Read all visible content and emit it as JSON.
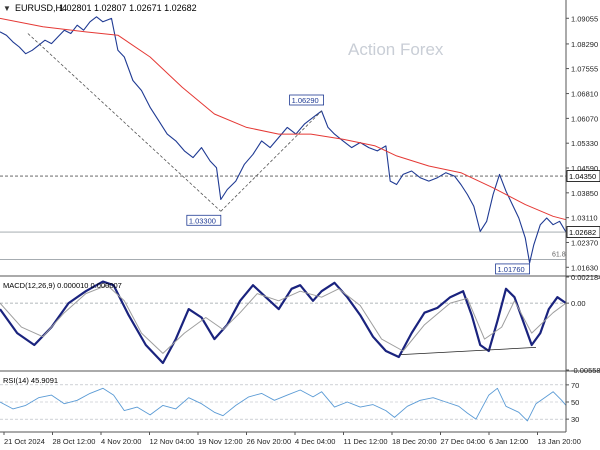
{
  "header": {
    "arrow": "▼",
    "symbol": "EURUSD,H4",
    "ohlc": "1.02801 1.02807 1.02671 1.02682"
  },
  "watermark": "Action Forex",
  "colors": {
    "price": "#1f3a93",
    "ma": "#e53935",
    "macd": "#1a237e",
    "signal": "#9e9e9e",
    "rsi": "#5b9bd5",
    "grid": "#cfd8e3",
    "axis": "#333333"
  },
  "chart_data": [
    {
      "type": "line",
      "panel": "price",
      "title": "EURUSD,H4",
      "y_ticks": [
        "1.09055",
        "1.08290",
        "1.07555",
        "1.06810",
        "1.06070",
        "1.05330",
        "1.04590",
        "1.03850",
        "1.03110",
        "1.02370",
        "1.01630"
      ],
      "ylim": [
        1.014,
        1.096
      ],
      "x_ticks": [
        "21 Oct 2024",
        "28 Oct 12:00",
        "4 Nov 20:00",
        "12 Nov 04:00",
        "19 Nov 12:00",
        "26 Nov 20:00",
        "4 Dec 04:00",
        "11 Dec 12:00",
        "18 Dec 20:00",
        "27 Dec 04:00",
        "6 Jan 12:00",
        "13 Jan 20:00"
      ],
      "series": [
        {
          "role": "price",
          "values": [
            [
              0,
              1.0865
            ],
            [
              3,
              1.0855
            ],
            [
              6,
              1.0835
            ],
            [
              9,
              1.082
            ],
            [
              12,
              1.08
            ],
            [
              15,
              1.081
            ],
            [
              18,
              1.0825
            ],
            [
              21,
              1.084
            ],
            [
              24,
              1.083
            ],
            [
              27,
              1.085
            ],
            [
              30,
              1.087
            ],
            [
              33,
              1.086
            ],
            [
              36,
              1.0885
            ],
            [
              39,
              1.087
            ],
            [
              42,
              1.0895
            ],
            [
              45,
              1.091
            ],
            [
              48,
              1.0895
            ],
            [
              52,
              1.0905
            ],
            [
              55,
              1.081
            ],
            [
              58,
              1.079
            ],
            [
              62,
              1.072
            ],
            [
              66,
              1.069
            ],
            [
              70,
              1.064
            ],
            [
              74,
              1.06
            ],
            [
              78,
              1.056
            ],
            [
              82,
              1.054
            ],
            [
              86,
              1.051
            ],
            [
              90,
              1.049
            ],
            [
              94,
              1.052
            ],
            [
              98,
              1.048
            ],
            [
              101,
              1.046
            ],
            [
              103,
              1.0365
            ],
            [
              106,
              1.0395
            ],
            [
              110,
              1.042
            ],
            [
              114,
              1.047
            ],
            [
              118,
              1.05
            ],
            [
              122,
              1.054
            ],
            [
              126,
              1.052
            ],
            [
              130,
              1.055
            ],
            [
              134,
              1.058
            ],
            [
              138,
              1.056
            ],
            [
              142,
              1.059
            ],
            [
              146,
              1.061
            ],
            [
              150,
              1.0629
            ],
            [
              153,
              1.058
            ],
            [
              156,
              1.056
            ],
            [
              160,
              1.054
            ],
            [
              164,
              1.052
            ],
            [
              168,
              1.0535
            ],
            [
              172,
              1.052
            ],
            [
              176,
              1.051
            ],
            [
              180,
              1.0525
            ],
            [
              182,
              1.042
            ],
            [
              185,
              1.041
            ],
            [
              188,
              1.044
            ],
            [
              192,
              1.045
            ],
            [
              196,
              1.043
            ],
            [
              200,
              1.042
            ],
            [
              204,
              1.043
            ],
            [
              208,
              1.0445
            ],
            [
              212,
              1.0435
            ],
            [
              215,
              1.041
            ],
            [
              218,
              1.038
            ],
            [
              221,
              1.0345
            ],
            [
              224,
              1.027
            ],
            [
              227,
              1.03
            ],
            [
              230,
              1.038
            ],
            [
              233,
              1.044
            ],
            [
              236,
              1.039
            ],
            [
              239,
              1.035
            ],
            [
              242,
              1.031
            ],
            [
              245,
              1.025
            ],
            [
              247,
              1.0176
            ],
            [
              249,
              1.023
            ],
            [
              252,
              1.029
            ],
            [
              255,
              1.031
            ],
            [
              258,
              1.029
            ],
            [
              261,
              1.03
            ],
            [
              264,
              1.0268
            ]
          ]
        },
        {
          "role": "moving-average",
          "values": [
            [
              0,
              1.0905
            ],
            [
              20,
              1.088
            ],
            [
              40,
              1.0865
            ],
            [
              55,
              1.0855
            ],
            [
              70,
              1.079
            ],
            [
              85,
              1.07
            ],
            [
              100,
              1.062
            ],
            [
              115,
              1.058
            ],
            [
              130,
              1.056
            ],
            [
              145,
              1.056
            ],
            [
              160,
              1.0545
            ],
            [
              175,
              1.0525
            ],
            [
              185,
              1.0495
            ],
            [
              200,
              1.0465
            ],
            [
              215,
              1.0445
            ],
            [
              230,
              1.04
            ],
            [
              245,
              1.035
            ],
            [
              258,
              1.0315
            ],
            [
              264,
              1.0305
            ]
          ]
        },
        {
          "role": "trendline",
          "values": [
            [
              13,
              1.086
            ],
            [
              103,
              1.033
            ]
          ]
        },
        {
          "role": "trendline",
          "values": [
            [
              103,
              1.033
            ],
            [
              150,
              1.0629
            ]
          ]
        }
      ],
      "levels": [
        {
          "value": 1.0435,
          "label": "1.04350",
          "style": "dashed"
        },
        {
          "value": 1.0268,
          "label": "1.02682",
          "style": "solid"
        },
        {
          "value": 1.0186,
          "label": "61.8",
          "style": "solid"
        }
      ],
      "annotations": [
        {
          "text": "1.06290",
          "x": 150,
          "y": 1.0629
        },
        {
          "text": "1.03300",
          "x": 103,
          "y": 1.033
        },
        {
          "text": "1.01760",
          "x": 247,
          "y": 1.0176
        }
      ]
    },
    {
      "type": "line",
      "panel": "macd",
      "title": "MACD(12,26,9) 0.000010 0.000007",
      "y_ticks": [
        "0.002184",
        "0.00",
        "-0.005584"
      ],
      "ylim": [
        -0.005584,
        0.002184
      ],
      "series": [
        {
          "role": "macd",
          "values": [
            [
              0,
              -0.0005
            ],
            [
              8,
              -0.0025
            ],
            [
              16,
              -0.0035
            ],
            [
              24,
              -0.002
            ],
            [
              32,
              0.0
            ],
            [
              40,
              0.001
            ],
            [
              48,
              0.0018
            ],
            [
              53,
              0.0015
            ],
            [
              60,
              -0.001
            ],
            [
              68,
              -0.0035
            ],
            [
              76,
              -0.005
            ],
            [
              82,
              -0.003
            ],
            [
              88,
              -0.0005
            ],
            [
              94,
              -0.0012
            ],
            [
              100,
              -0.003
            ],
            [
              106,
              -0.0018
            ],
            [
              112,
              0.0002
            ],
            [
              118,
              0.0015
            ],
            [
              124,
              0.0005
            ],
            [
              130,
              -0.0005
            ],
            [
              136,
              0.0012
            ],
            [
              140,
              0.0015
            ],
            [
              146,
              0.0002
            ],
            [
              150,
              0.001
            ],
            [
              156,
              0.0017
            ],
            [
              162,
              0.0005
            ],
            [
              168,
              -0.001
            ],
            [
              174,
              -0.0028
            ],
            [
              180,
              -0.004
            ],
            [
              186,
              -0.0045
            ],
            [
              192,
              -0.0025
            ],
            [
              198,
              -0.0008
            ],
            [
              204,
              -0.0004
            ],
            [
              210,
              0.0005
            ],
            [
              216,
              0.001
            ],
            [
              220,
              -0.001
            ],
            [
              224,
              -0.0035
            ],
            [
              228,
              -0.004
            ],
            [
              232,
              -0.0015
            ],
            [
              236,
              0.0012
            ],
            [
              240,
              0.0005
            ],
            [
              244,
              -0.0015
            ],
            [
              248,
              -0.0035
            ],
            [
              252,
              -0.0025
            ],
            [
              256,
              -0.0005
            ],
            [
              260,
              0.0005
            ],
            [
              264,
              0.0
            ]
          ]
        },
        {
          "role": "signal",
          "values": [
            [
              0,
              0.0
            ],
            [
              10,
              -0.002
            ],
            [
              20,
              -0.0028
            ],
            [
              30,
              -0.0008
            ],
            [
              40,
              0.0008
            ],
            [
              50,
              0.0015
            ],
            [
              58,
              0.0002
            ],
            [
              66,
              -0.0025
            ],
            [
              76,
              -0.0042
            ],
            [
              86,
              -0.0025
            ],
            [
              96,
              -0.0012
            ],
            [
              104,
              -0.0022
            ],
            [
              112,
              -0.0008
            ],
            [
              120,
              0.0008
            ],
            [
              130,
              0.0002
            ],
            [
              140,
              0.001
            ],
            [
              150,
              0.0005
            ],
            [
              158,
              0.0012
            ],
            [
              168,
              -0.0002
            ],
            [
              178,
              -0.003
            ],
            [
              188,
              -0.004
            ],
            [
              198,
              -0.0018
            ],
            [
              210,
              0.0
            ],
            [
              218,
              0.0004
            ],
            [
              226,
              -0.003
            ],
            [
              234,
              -0.002
            ],
            [
              240,
              0.0002
            ],
            [
              248,
              -0.0025
            ],
            [
              258,
              -0.0008
            ],
            [
              264,
              0.0
            ]
          ]
        },
        {
          "role": "trendline",
          "values": [
            [
              187,
              -0.0043
            ],
            [
              250,
              -0.0037
            ]
          ]
        }
      ]
    },
    {
      "type": "line",
      "panel": "rsi",
      "title": "RSI(14) 45.9091",
      "y_ticks": [
        "70",
        "50",
        "30"
      ],
      "ylim": [
        15,
        85
      ],
      "series": [
        {
          "role": "rsi",
          "values": [
            [
              0,
              50
            ],
            [
              6,
              42
            ],
            [
              12,
              46
            ],
            [
              18,
              55
            ],
            [
              24,
              58
            ],
            [
              30,
              48
            ],
            [
              36,
              52
            ],
            [
              42,
              60
            ],
            [
              48,
              66
            ],
            [
              53,
              58
            ],
            [
              58,
              40
            ],
            [
              64,
              44
            ],
            [
              70,
              35
            ],
            [
              76,
              46
            ],
            [
              82,
              42
            ],
            [
              88,
              55
            ],
            [
              94,
              48
            ],
            [
              100,
              38
            ],
            [
              104,
              34
            ],
            [
              110,
              46
            ],
            [
              116,
              56
            ],
            [
              122,
              60
            ],
            [
              128,
              52
            ],
            [
              134,
              58
            ],
            [
              140,
              64
            ],
            [
              146,
              56
            ],
            [
              150,
              62
            ],
            [
              156,
              44
            ],
            [
              162,
              50
            ],
            [
              168,
              44
            ],
            [
              174,
              47
            ],
            [
              180,
              40
            ],
            [
              184,
              32
            ],
            [
              190,
              45
            ],
            [
              196,
              52
            ],
            [
              202,
              55
            ],
            [
              208,
              50
            ],
            [
              214,
              45
            ],
            [
              218,
              37
            ],
            [
              222,
              30
            ],
            [
              228,
              58
            ],
            [
              232,
              66
            ],
            [
              236,
              45
            ],
            [
              242,
              38
            ],
            [
              246,
              28
            ],
            [
              250,
              48
            ],
            [
              254,
              55
            ],
            [
              258,
              62
            ],
            [
              262,
              52
            ],
            [
              264,
              46
            ]
          ]
        }
      ]
    }
  ]
}
